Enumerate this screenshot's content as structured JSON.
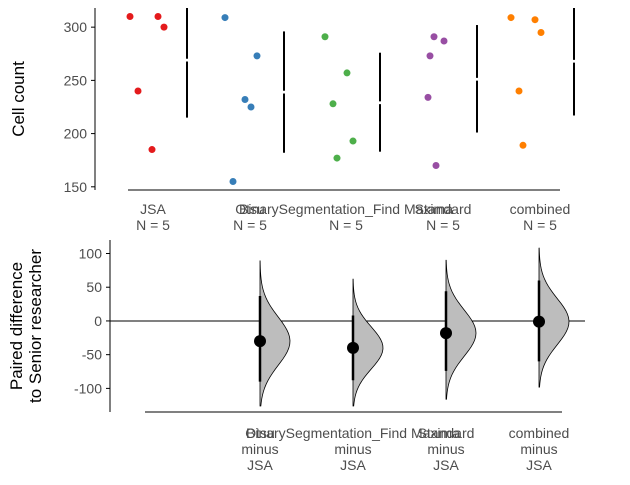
{
  "chart_data": [
    {
      "type": "scatter",
      "panel": "swarm",
      "ylabel": "Cell count",
      "ylim": [
        147,
        318
      ],
      "yticks": [
        150,
        200,
        250,
        300
      ],
      "groups": [
        {
          "name": "JSA",
          "n_label": "N = 5",
          "color": "#e41a1c",
          "points": [
            310,
            310,
            300,
            240,
            185
          ],
          "mean": 269,
          "sd_low": 215,
          "sd_high": 318
        },
        {
          "name": "Otsu",
          "n_label": "N = 5",
          "color": "#377eb8",
          "points": [
            309,
            273,
            232,
            225,
            155
          ],
          "mean": 239,
          "sd_low": 182,
          "sd_high": 296
        },
        {
          "name": "BinarySegmentation_Find Maxima",
          "n_label": "N = 5",
          "color": "#4daf4a",
          "points": [
            291,
            257,
            228,
            193,
            177
          ],
          "mean": 229,
          "sd_low": 183,
          "sd_high": 276
        },
        {
          "name": "Standard",
          "n_label": "N = 5",
          "color": "#984ea3",
          "points": [
            291,
            287,
            273,
            234,
            170
          ],
          "mean": 251,
          "sd_low": 201,
          "sd_high": 302
        },
        {
          "name": "combined",
          "n_label": "N = 5",
          "color": "#ff7f00",
          "points": [
            309,
            307,
            295,
            240,
            189
          ],
          "mean": 268,
          "sd_low": 217,
          "sd_high": 318
        }
      ]
    },
    {
      "type": "scatter",
      "panel": "paired-difference",
      "ylabel_lines": [
        "Paired difference",
        "to Senior researcher"
      ],
      "ylim": [
        -135,
        120
      ],
      "yticks": [
        -100,
        -50,
        0,
        50,
        100
      ],
      "comparisons": [
        {
          "group": "Otsu",
          "label_lines": [
            "Otsu",
            "minus",
            "JSA"
          ],
          "mean_diff": -30,
          "ci_low": -90,
          "ci_high": 37,
          "dist_low": -126,
          "dist_high": 89
        },
        {
          "group": "BinarySegmentation_Find Maxima",
          "label_lines": [
            "BinarySegmentation_Find Maxima",
            "minus",
            "JSA"
          ],
          "mean_diff": -40,
          "ci_low": -88,
          "ci_high": 8,
          "dist_low": -126,
          "dist_high": 62
        },
        {
          "group": "Standard",
          "label_lines": [
            "Standard",
            "minus",
            "JSA"
          ],
          "mean_diff": -18,
          "ci_low": -74,
          "ci_high": 44,
          "dist_low": -116,
          "dist_high": 90
        },
        {
          "group": "combined",
          "label_lines": [
            "combined",
            "minus",
            "JSA"
          ],
          "mean_diff": -1,
          "ci_low": -60,
          "ci_high": 60,
          "dist_low": -98,
          "dist_high": 108
        }
      ]
    }
  ]
}
